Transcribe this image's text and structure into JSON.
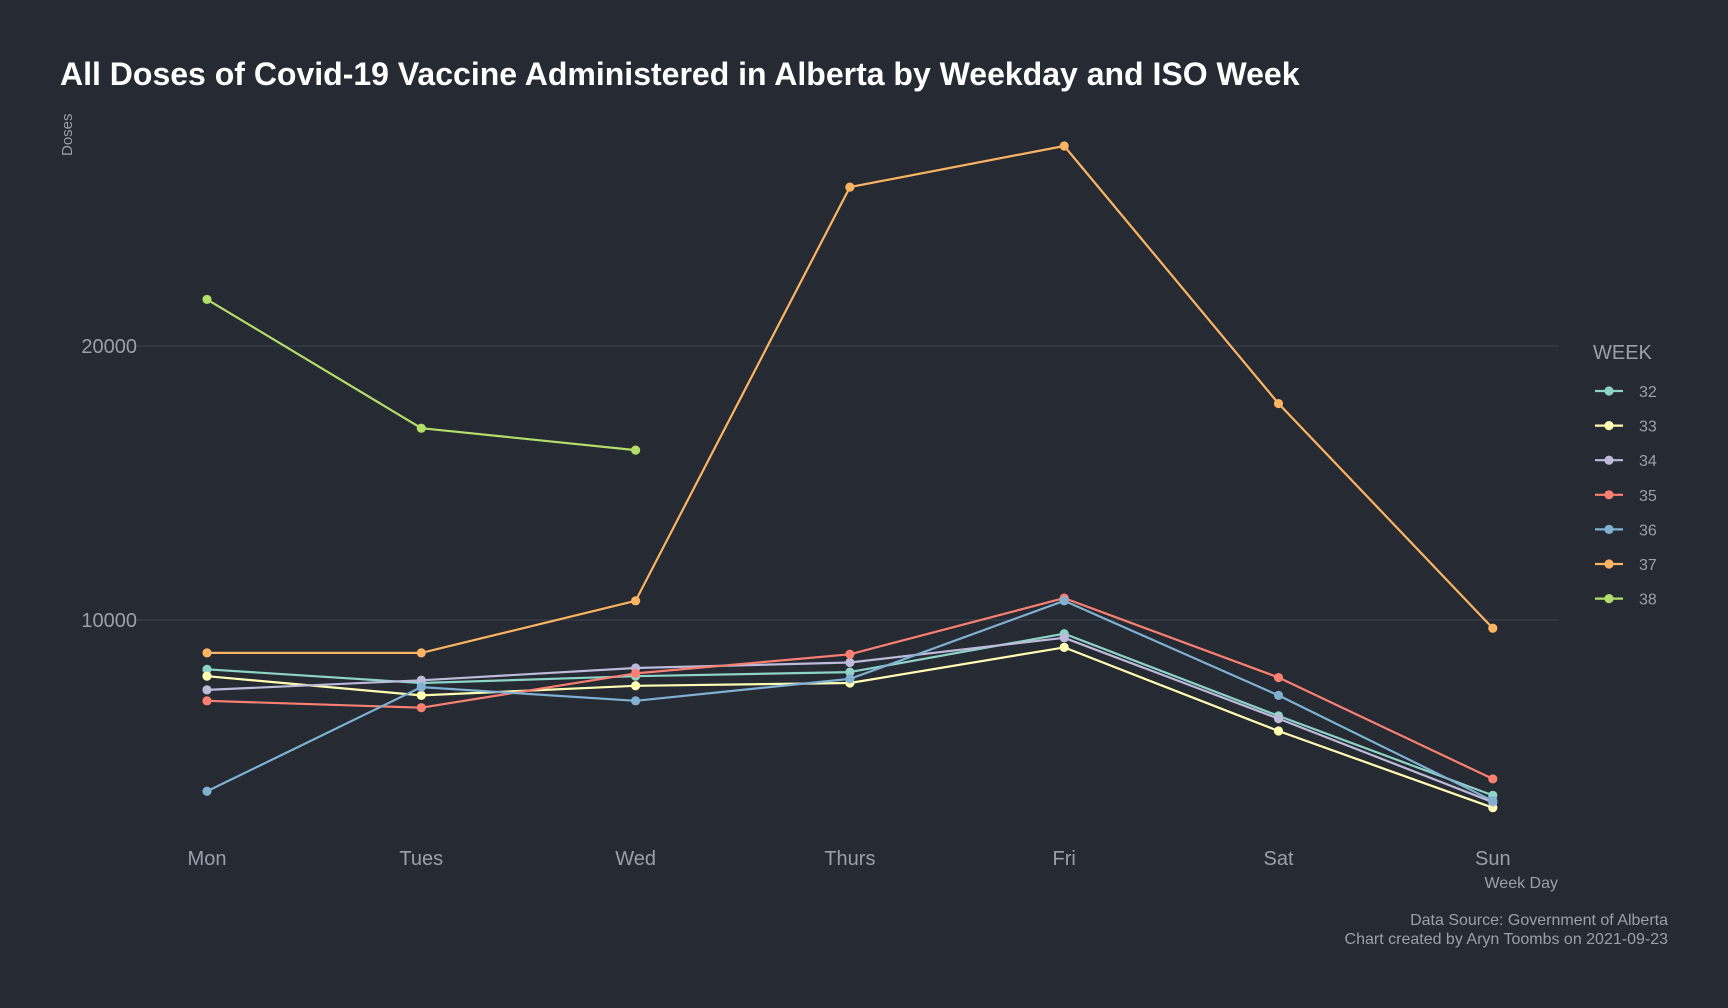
{
  "chart_data": {
    "type": "line",
    "title": "All Doses of Covid-19 Vaccine Administered in Alberta by Weekday and ISO Week",
    "xlabel": "Week Day",
    "ylabel": "Doses",
    "categories": [
      "Mon",
      "Tues",
      "Wed",
      "Thurs",
      "Fri",
      "Sat",
      "Sun"
    ],
    "ylim": [
      2000,
      28000
    ],
    "yticks": [
      10000,
      20000
    ],
    "grid": true,
    "legend": {
      "title": "WEEK",
      "placement": "right"
    },
    "series": [
      {
        "name": "32",
        "color": "#8dd3c7",
        "values": [
          8200,
          7700,
          7950,
          8100,
          9500,
          6500,
          3600
        ]
      },
      {
        "name": "33",
        "color": "#ffffb3",
        "values": [
          7950,
          7250,
          7600,
          7700,
          9000,
          5950,
          3150
        ]
      },
      {
        "name": "34",
        "color": "#bebada",
        "values": [
          7450,
          7800,
          8250,
          8450,
          9350,
          6400,
          3350
        ]
      },
      {
        "name": "35",
        "color": "#fb8072",
        "values": [
          7050,
          6800,
          8050,
          8750,
          10800,
          7900,
          4200
        ]
      },
      {
        "name": "36",
        "color": "#80b1d3",
        "values": [
          3750,
          7550,
          7050,
          7850,
          10700,
          7250,
          3400
        ]
      },
      {
        "name": "37",
        "color": "#fdb462",
        "values": [
          8800,
          8800,
          10700,
          25800,
          27300,
          17900,
          9700
        ]
      },
      {
        "name": "38",
        "color": "#b3de69",
        "values": [
          21700,
          17000,
          16200,
          null,
          null,
          null,
          null
        ]
      }
    ]
  },
  "caption": {
    "source": "Data Source: Government of Alberta",
    "credit": "Chart created by Aryn Toombs on 2021-09-23"
  }
}
